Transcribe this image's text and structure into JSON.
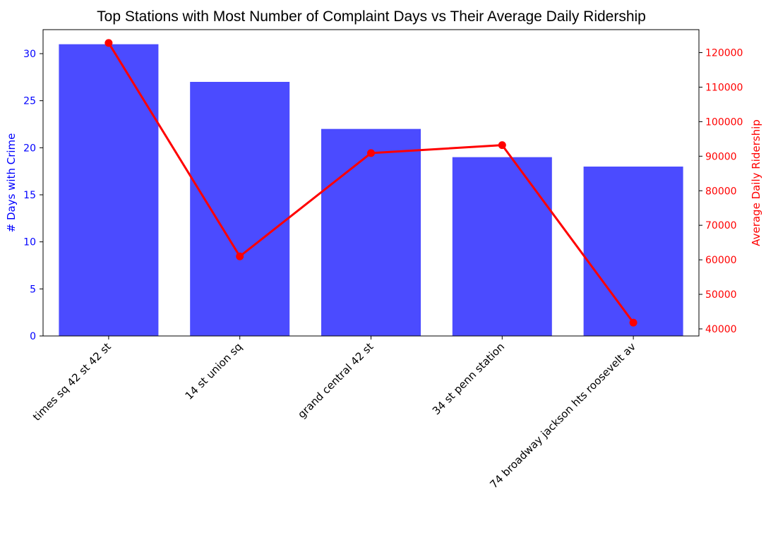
{
  "chart_data": {
    "type": "bar+line",
    "title": "Top Stations with Most Number of Complaint Days vs Their Average Daily Ridership",
    "categories": [
      "times sq 42 st 42 st",
      "14 st union sq",
      "grand central 42 st",
      "34 st penn station",
      "74 broadway jackson hts roosevelt av"
    ],
    "series": [
      {
        "name": "# Days with Crime",
        "type": "bar",
        "axis": "left",
        "color": "#4b4bff",
        "values": [
          31,
          27,
          22,
          19,
          18
        ]
      },
      {
        "name": "Average Daily Ridership",
        "type": "line",
        "axis": "right",
        "color": "#ff0000",
        "values": [
          122800,
          61000,
          90900,
          93200,
          41800
        ]
      }
    ],
    "y_left": {
      "label": "# Days with Crime",
      "ylim": [
        0,
        32.55
      ],
      "ticks": [
        0,
        5,
        10,
        15,
        20,
        25,
        30
      ],
      "color": "#0000ff"
    },
    "y_right": {
      "label": "Average Daily Ridership",
      "ylim": [
        37950,
        126650
      ],
      "ticks": [
        40000,
        50000,
        60000,
        70000,
        80000,
        90000,
        100000,
        110000,
        120000
      ],
      "color": "#ff0000"
    },
    "grid": false
  }
}
